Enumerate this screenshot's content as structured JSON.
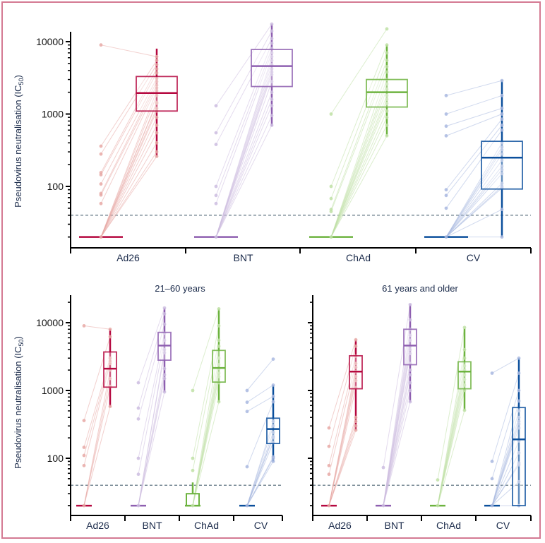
{
  "colors": {
    "Ad26": "#b5073f",
    "Ad26_light": "#e8a9a6",
    "BNT": "#8e5fb0",
    "BNT_light": "#cdbde0",
    "ChAd": "#6db33f",
    "ChAd_light": "#bfe0a6",
    "CV": "#0b4f9c",
    "CV_light": "#a9b9e0",
    "threshold": "#4d6473",
    "axis": "#000000",
    "frame": "#d47a93"
  },
  "chart_data": [
    {
      "id": "overall",
      "type": "box-paired-scatter",
      "title": "",
      "ylabel": "Pseudovirus neutralisation (IC50)",
      "ylabel_main": "Pseudovirus neutralisation (IC",
      "ylabel_sub": "50",
      "ylabel_end": ")",
      "yscale": "log",
      "ylim": [
        12,
        25000
      ],
      "yticks": [
        100,
        1000,
        10000
      ],
      "ytick_labels": [
        "100",
        "1000",
        "10000"
      ],
      "threshold": 40,
      "categories": [
        "Ad26",
        "BNT",
        "ChAd",
        "CV"
      ],
      "groups": [
        {
          "name": "Ad26",
          "pre_box": {
            "min": 20,
            "q1": 20,
            "median": 20,
            "q3": 20,
            "max": 20
          },
          "post_box": {
            "min": 260,
            "q1": 1100,
            "median": 1950,
            "q3": 3300,
            "max": 8000
          },
          "pre_points": [
            9000,
            360,
            280,
            155,
            145,
            108,
            80,
            76,
            58,
            20
          ],
          "post_points": [
            6200,
            5500,
            4800,
            4200,
            3700,
            3100,
            2800,
            2500,
            2300,
            2100,
            1800,
            1450,
            1400,
            1200,
            1100,
            900,
            700,
            550,
            400,
            300,
            260
          ]
        },
        {
          "name": "BNT",
          "pre_box": {
            "min": 20,
            "q1": 20,
            "median": 20,
            "q3": 20,
            "max": 20
          },
          "post_box": {
            "min": 680,
            "q1": 2400,
            "median": 4600,
            "q3": 7800,
            "max": 17500
          },
          "pre_points": [
            1300,
            550,
            380,
            100,
            75,
            58,
            20
          ],
          "post_points": [
            17500,
            14000,
            11000,
            9500,
            8000,
            7000,
            6200,
            5500,
            4800,
            4200,
            3800,
            3500,
            2800,
            2000,
            1600,
            1300,
            950,
            700
          ]
        },
        {
          "name": "ChAd",
          "pre_box": {
            "min": 20,
            "q1": 20,
            "median": 20,
            "q3": 20,
            "max": 20
          },
          "post_box": {
            "min": 500,
            "q1": 1250,
            "median": 2000,
            "q3": 3000,
            "max": 9000
          },
          "pre_points": [
            1000,
            100,
            68,
            48,
            45,
            20
          ],
          "post_points": [
            15000,
            9000,
            7000,
            5500,
            4500,
            3800,
            3000,
            2600,
            2200,
            1800,
            1600,
            1400,
            1100,
            900,
            700,
            500
          ]
        },
        {
          "name": "CV",
          "pre_box": {
            "min": 20,
            "q1": 20,
            "median": 20,
            "q3": 20,
            "max": 20
          },
          "post_box": {
            "min": 20,
            "q1": 92,
            "median": 250,
            "q3": 420,
            "max": 2900
          },
          "pre_points": [
            1800,
            1000,
            680,
            500,
            90,
            75,
            50,
            20
          ],
          "post_points": [
            2900,
            1800,
            1200,
            1000,
            850,
            700,
            600,
            400,
            350,
            320,
            280,
            230,
            190,
            170,
            150,
            110,
            100,
            95,
            48,
            20
          ]
        }
      ]
    },
    {
      "id": "age-21-60",
      "type": "box-paired-scatter",
      "title": "21–60 years",
      "ylabel_main": "Pseudovirus neutralisation (IC",
      "ylabel_sub": "50",
      "ylabel_end": ")",
      "yscale": "log",
      "ylim": [
        12,
        25000
      ],
      "yticks": [
        100,
        1000,
        10000
      ],
      "ytick_labels": [
        "100",
        "1000",
        "10000"
      ],
      "threshold": 40,
      "categories": [
        "Ad26",
        "BNT",
        "ChAd",
        "CV"
      ],
      "groups": [
        {
          "name": "Ad26",
          "pre_box": {
            "min": 20,
            "q1": 20,
            "median": 20,
            "q3": 20,
            "max": 20
          },
          "post_box": {
            "min": 580,
            "q1": 1120,
            "median": 2100,
            "q3": 3700,
            "max": 8000
          },
          "pre_points": [
            9000,
            360,
            145,
            110,
            78,
            20
          ],
          "post_points": [
            8000,
            6200,
            3000,
            2700,
            2500,
            2000,
            1500,
            1150,
            580
          ]
        },
        {
          "name": "BNT",
          "pre_box": {
            "min": 20,
            "q1": 20,
            "median": 20,
            "q3": 20,
            "max": 20
          },
          "post_box": {
            "min": 950,
            "q1": 2800,
            "median": 4600,
            "q3": 7200,
            "max": 16500
          },
          "pre_points": [
            1300,
            550,
            380,
            100,
            58,
            20
          ],
          "post_points": [
            16500,
            13500,
            9500,
            7000,
            5500,
            4000,
            3600,
            2100,
            1700,
            1500,
            950
          ]
        },
        {
          "name": "ChAd",
          "pre_box": {
            "min": 20,
            "q1": 20,
            "median": 20,
            "q3": 30,
            "max": 44
          },
          "post_box": {
            "min": 680,
            "q1": 1330,
            "median": 2150,
            "q3": 3900,
            "max": 16000
          },
          "pre_points": [
            1000,
            100,
            66,
            20
          ],
          "post_points": [
            16000,
            9000,
            5500,
            4500,
            3000,
            2400,
            2100,
            1800,
            1600,
            1300,
            680
          ]
        },
        {
          "name": "CV",
          "pre_box": {
            "min": 20,
            "q1": 20,
            "median": 20,
            "q3": 20,
            "max": 20
          },
          "post_box": {
            "min": 90,
            "q1": 165,
            "median": 270,
            "q3": 390,
            "max": 1200
          },
          "pre_points": [
            1000,
            670,
            490,
            75,
            20
          ],
          "post_points": [
            2900,
            1200,
            820,
            680,
            350,
            300,
            240,
            210,
            200,
            170,
            105,
            100,
            90
          ]
        }
      ]
    },
    {
      "id": "age-61-plus",
      "type": "box-paired-scatter",
      "title": "61 years and older",
      "yscale": "log",
      "ylim": [
        12,
        25000
      ],
      "yticks": [
        100,
        1000,
        10000
      ],
      "threshold": 40,
      "categories": [
        "Ad26",
        "BNT",
        "ChAd",
        "CV"
      ],
      "groups": [
        {
          "name": "Ad26",
          "pre_box": {
            "min": 20,
            "q1": 20,
            "median": 20,
            "q3": 20,
            "max": 20
          },
          "post_box": {
            "min": 260,
            "q1": 1060,
            "median": 1900,
            "q3": 3250,
            "max": 5600
          },
          "pre_points": [
            280,
            150,
            78,
            58,
            20
          ],
          "post_points": [
            5600,
            4500,
            3200,
            2500,
            2200,
            1900,
            1600,
            1400,
            1100,
            400,
            350,
            300,
            260
          ]
        },
        {
          "name": "BNT",
          "pre_box": {
            "min": 20,
            "q1": 20,
            "median": 20,
            "q3": 20,
            "max": 20
          },
          "post_box": {
            "min": 680,
            "q1": 2400,
            "median": 4600,
            "q3": 8000,
            "max": 18500
          },
          "pre_points": [
            73,
            20
          ],
          "post_points": [
            18500,
            11000,
            8000,
            6500,
            5500,
            4500,
            4000,
            3500,
            2500,
            2000,
            1700,
            1300,
            1000,
            680
          ]
        },
        {
          "name": "ChAd",
          "pre_box": {
            "min": 20,
            "q1": 20,
            "median": 20,
            "q3": 20,
            "max": 20
          },
          "post_box": {
            "min": 510,
            "q1": 1060,
            "median": 1900,
            "q3": 2650,
            "max": 8200
          },
          "pre_points": [
            48,
            20
          ],
          "post_points": [
            8500,
            4000,
            3000,
            2300,
            2000,
            1700,
            1450,
            1200,
            1000,
            510
          ]
        },
        {
          "name": "CV",
          "pre_box": {
            "min": 20,
            "q1": 20,
            "median": 20,
            "q3": 20,
            "max": 20
          },
          "post_box": {
            "min": 20,
            "q1": 20,
            "median": 190,
            "q3": 560,
            "max": 3000
          },
          "pre_points": [
            1800,
            90,
            50,
            20
          ],
          "post_points": [
            3000,
            1800,
            1000,
            700,
            500,
            400,
            350,
            320,
            280,
            180,
            120,
            85,
            80,
            45,
            20
          ]
        }
      ]
    }
  ]
}
